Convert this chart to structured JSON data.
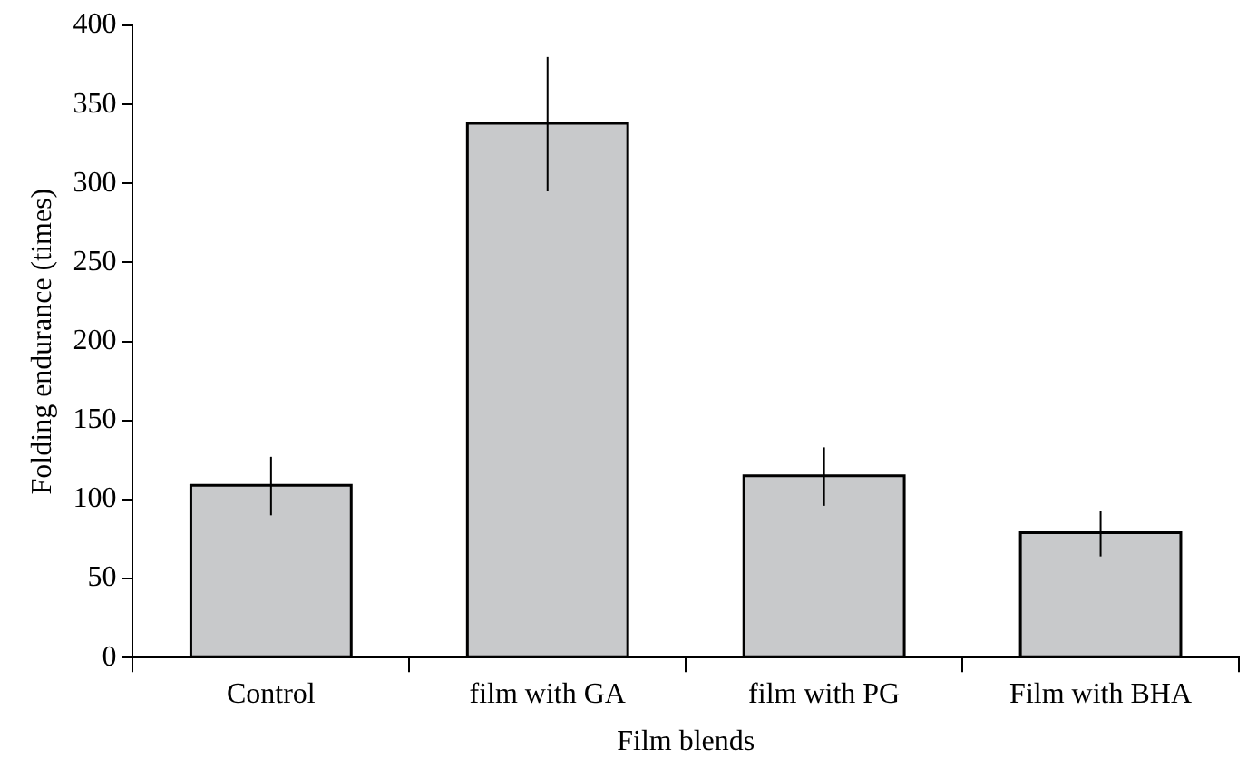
{
  "chart_data": {
    "type": "bar",
    "xlabel": "Film blends",
    "ylabel": "Folding endurance (times)",
    "categories": [
      "Control",
      "film with GA",
      "film with PG",
      "Film with BHA"
    ],
    "values": [
      109,
      338,
      115,
      79
    ],
    "errors": [
      [
        90,
        127
      ],
      [
        295,
        380
      ],
      [
        96,
        133
      ],
      [
        64,
        93
      ]
    ],
    "color": "#c8c9cb",
    "ylim": [
      0,
      400
    ],
    "yticks": [
      0,
      50,
      100,
      150,
      200,
      250,
      300,
      350,
      400
    ],
    "grid": false,
    "legend": false
  }
}
